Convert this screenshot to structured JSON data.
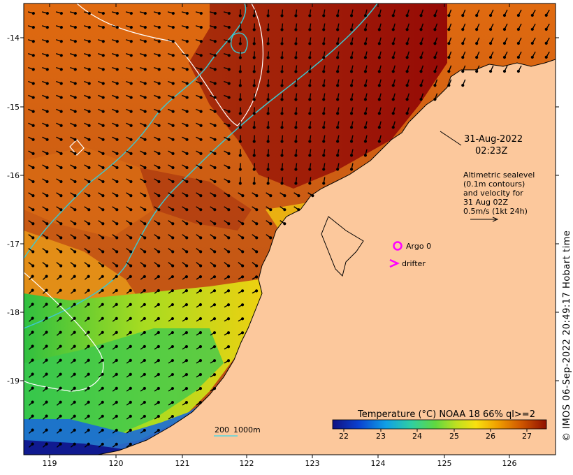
{
  "annotation": {
    "date": "31-Aug-2022",
    "time": "02:23Z",
    "altimetry_lines": [
      "Altimetric sealevel",
      "(0.1m contours)",
      "and velocity for",
      "31 Aug 02Z",
      "0.5m/s (1kt 24h)"
    ]
  },
  "legend": {
    "argo_label": "Argo 0",
    "drifter_label": "drifter",
    "argo_color": "#ff00ff",
    "drifter_color": "#ff00ff"
  },
  "depth_legend": {
    "label_200": "200",
    "label_1000": "1000m",
    "color": "#55d6e0"
  },
  "colorbar": {
    "title": "Temperature (°C) NOAA 18 66% ql>=2",
    "ticks": [
      "22",
      "23",
      "24",
      "25",
      "26",
      "27"
    ],
    "colors": [
      "#1a1a8c",
      "#0a2fc8",
      "#0a60e0",
      "#10a0e6",
      "#20c8d8",
      "#30d0a0",
      "#48d060",
      "#7cd830",
      "#b8e020",
      "#e8e818",
      "#f8c800",
      "#f0a000",
      "#e07800",
      "#c85400",
      "#a83000",
      "#901000"
    ]
  },
  "axes": {
    "x_ticks": [
      "119",
      "120",
      "121",
      "122",
      "123",
      "124",
      "125",
      "126"
    ],
    "y_ticks": [
      "-14",
      "-15",
      "-16",
      "-17",
      "-18",
      "-19"
    ],
    "x_range": [
      118.6,
      126.7
    ],
    "y_range": [
      -20.1,
      -13.6
    ]
  },
  "credit": "© IMOS 06-Sep-2022 20:49:17 Hobart time",
  "colors": {
    "land": "#fcc89c",
    "contour_white": "#ffffff",
    "contour_cyan": "#3cc8d0"
  }
}
